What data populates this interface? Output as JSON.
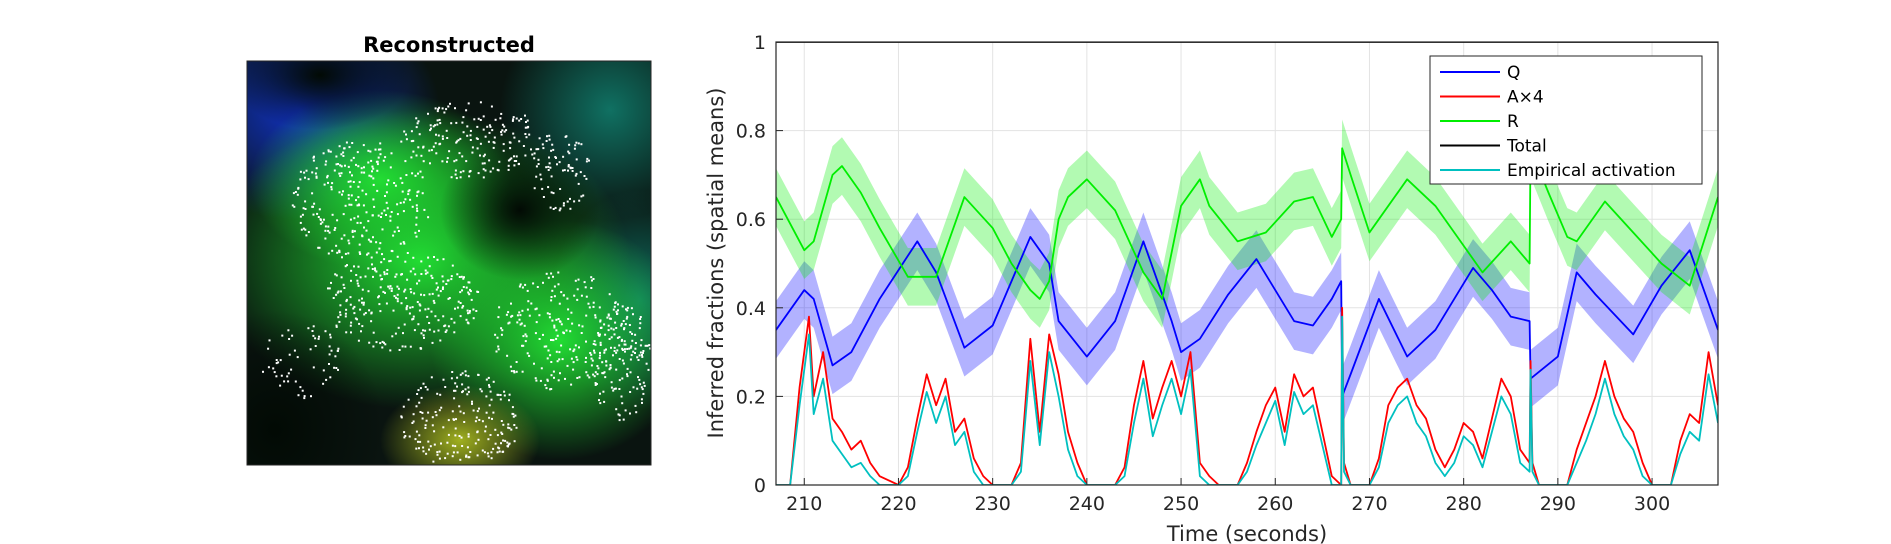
{
  "left_panel": {
    "title": "Reconstructed"
  },
  "chart_data": {
    "type": "line",
    "xlabel": "Time (seconds)",
    "ylabel": "Inferred fractions (spatial means)",
    "xlim": [
      207,
      307
    ],
    "ylim": [
      0,
      1
    ],
    "xticks": [
      "210",
      "220",
      "230",
      "240",
      "250",
      "260",
      "270",
      "280",
      "290",
      "300"
    ],
    "yticks": [
      "0",
      "0.2",
      "0.4",
      "0.6",
      "0.8",
      "1"
    ],
    "grid": true,
    "legend_position": "top-right",
    "series": [
      {
        "name": "Q",
        "color": "#0000ff",
        "band": true,
        "x": [
          207,
          210,
          211,
          213,
          215,
          218,
          222,
          224,
          227,
          230,
          234,
          236,
          237,
          240,
          243,
          246,
          249,
          250,
          252,
          255,
          258,
          262,
          264,
          266,
          267,
          267.1,
          268,
          271,
          274,
          277,
          281,
          283,
          285,
          287,
          287.1,
          290,
          292,
          294,
          298,
          301,
          304,
          307
        ],
        "y": [
          0.35,
          0.44,
          0.42,
          0.27,
          0.3,
          0.42,
          0.55,
          0.48,
          0.31,
          0.36,
          0.56,
          0.5,
          0.37,
          0.29,
          0.37,
          0.55,
          0.37,
          0.3,
          0.33,
          0.43,
          0.51,
          0.37,
          0.36,
          0.42,
          0.46,
          0.2,
          0.25,
          0.42,
          0.29,
          0.35,
          0.49,
          0.44,
          0.38,
          0.37,
          0.24,
          0.29,
          0.48,
          0.43,
          0.34,
          0.45,
          0.53,
          0.35
        ]
      },
      {
        "name": "A×4",
        "color": "#ff0000",
        "x": [
          207,
          208.5,
          209.5,
          210.5,
          211,
          212,
          213,
          214,
          215,
          216,
          217,
          218,
          220,
          221,
          222,
          223,
          224,
          225,
          226,
          227,
          228,
          229,
          230,
          232,
          233,
          234,
          235,
          236,
          237,
          238,
          239,
          240,
          243,
          244,
          245,
          246,
          247,
          248,
          249,
          250,
          251,
          252,
          253,
          254,
          256,
          257,
          258,
          259,
          260,
          261,
          262,
          263,
          264,
          265,
          266,
          267,
          267.1,
          267.3,
          268,
          270,
          271,
          272,
          273,
          274,
          275,
          276,
          277,
          278,
          279,
          280,
          281,
          282,
          283,
          284,
          285,
          286,
          287,
          287.1,
          287.3,
          288,
          291,
          292,
          293,
          294,
          295,
          296,
          297,
          298,
          299,
          300,
          302,
          303,
          304,
          305,
          306,
          307
        ],
        "y": [
          0,
          0,
          0.22,
          0.38,
          0.2,
          0.3,
          0.15,
          0.12,
          0.08,
          0.1,
          0.05,
          0.02,
          0,
          0.04,
          0.15,
          0.25,
          0.18,
          0.24,
          0.12,
          0.15,
          0.06,
          0.02,
          0,
          0,
          0.05,
          0.33,
          0.12,
          0.34,
          0.25,
          0.12,
          0.05,
          0,
          0,
          0.04,
          0.18,
          0.28,
          0.15,
          0.22,
          0.28,
          0.2,
          0.3,
          0.05,
          0.02,
          0,
          0,
          0.05,
          0.12,
          0.18,
          0.22,
          0.12,
          0.25,
          0.2,
          0.22,
          0.12,
          0.02,
          0,
          0.4,
          0.05,
          0,
          0,
          0.06,
          0.18,
          0.22,
          0.24,
          0.18,
          0.15,
          0.08,
          0.04,
          0.08,
          0.14,
          0.12,
          0.06,
          0.15,
          0.24,
          0.2,
          0.08,
          0.05,
          0.28,
          0.05,
          0,
          0,
          0.08,
          0.14,
          0.2,
          0.28,
          0.2,
          0.15,
          0.12,
          0.05,
          0,
          0,
          0.1,
          0.16,
          0.14,
          0.3,
          0.18
        ]
      },
      {
        "name": "R",
        "color": "#00ee00",
        "band": true,
        "x": [
          207,
          210,
          211,
          213,
          214,
          216,
          218,
          221,
          224,
          227,
          230,
          232,
          234,
          235,
          236,
          237,
          238,
          240,
          243,
          246,
          248,
          250,
          252,
          253,
          256,
          259,
          262,
          264,
          266,
          267,
          267.1,
          268,
          270,
          271,
          274,
          277,
          280,
          282,
          285,
          287,
          287.1,
          289,
          291,
          292,
          295,
          298,
          301,
          304,
          307
        ],
        "y": [
          0.65,
          0.53,
          0.55,
          0.7,
          0.72,
          0.66,
          0.58,
          0.47,
          0.47,
          0.65,
          0.58,
          0.5,
          0.44,
          0.42,
          0.46,
          0.6,
          0.65,
          0.69,
          0.62,
          0.48,
          0.42,
          0.63,
          0.69,
          0.63,
          0.55,
          0.57,
          0.64,
          0.65,
          0.56,
          0.6,
          0.76,
          0.7,
          0.57,
          0.6,
          0.69,
          0.63,
          0.54,
          0.48,
          0.55,
          0.5,
          0.76,
          0.66,
          0.56,
          0.55,
          0.64,
          0.57,
          0.5,
          0.45,
          0.65
        ]
      },
      {
        "name": "Total",
        "color": "#000000",
        "x": [
          207,
          307
        ],
        "y": [
          1,
          1
        ]
      },
      {
        "name": "Empirical activation",
        "color": "#00c0c0",
        "x": [
          207,
          208.5,
          209.5,
          210.5,
          211,
          212,
          213,
          214,
          215,
          216,
          217,
          218,
          220,
          221,
          222,
          223,
          224,
          225,
          226,
          227,
          228,
          229,
          230,
          232,
          233,
          234,
          235,
          236,
          237,
          238,
          239,
          240,
          243,
          244,
          245,
          246,
          247,
          248,
          249,
          250,
          251,
          252,
          253,
          254,
          256,
          257,
          258,
          259,
          260,
          261,
          262,
          263,
          264,
          265,
          266,
          267,
          267.1,
          267.3,
          268,
          270,
          271,
          272,
          273,
          274,
          275,
          276,
          277,
          278,
          279,
          280,
          281,
          282,
          283,
          284,
          285,
          286,
          287,
          287.1,
          287.3,
          288,
          291,
          292,
          293,
          294,
          295,
          296,
          297,
          298,
          299,
          300,
          302,
          303,
          304,
          305,
          306,
          307
        ],
        "y": [
          0,
          0,
          0.18,
          0.34,
          0.16,
          0.24,
          0.1,
          0.07,
          0.04,
          0.05,
          0.02,
          0,
          0,
          0.02,
          0.12,
          0.21,
          0.14,
          0.2,
          0.09,
          0.12,
          0.03,
          0,
          0,
          0,
          0.03,
          0.28,
          0.09,
          0.3,
          0.2,
          0.08,
          0.02,
          0,
          0,
          0.02,
          0.14,
          0.24,
          0.11,
          0.18,
          0.24,
          0.16,
          0.26,
          0.02,
          0,
          0,
          0,
          0.03,
          0.09,
          0.14,
          0.19,
          0.09,
          0.21,
          0.16,
          0.18,
          0.09,
          0,
          0,
          0.38,
          0.03,
          0,
          0,
          0.04,
          0.14,
          0.18,
          0.2,
          0.14,
          0.11,
          0.05,
          0.02,
          0.05,
          0.11,
          0.09,
          0.04,
          0.12,
          0.2,
          0.16,
          0.05,
          0.03,
          0.26,
          0.03,
          0,
          0,
          0.05,
          0.1,
          0.16,
          0.24,
          0.16,
          0.11,
          0.08,
          0.02,
          0,
          0,
          0.07,
          0.12,
          0.1,
          0.25,
          0.14
        ]
      }
    ]
  }
}
